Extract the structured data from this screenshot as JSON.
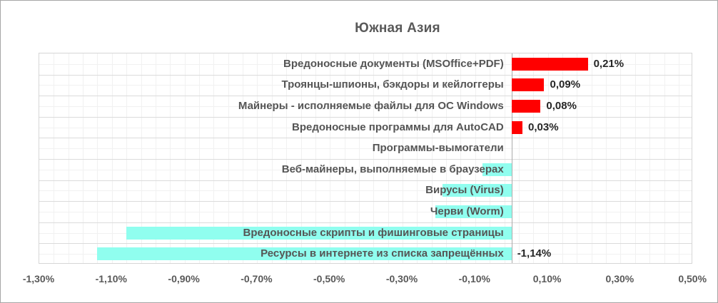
{
  "window": {
    "background": "#FFFFFF",
    "border_color": "#A6A6A6"
  },
  "chart_data": {
    "type": "bar",
    "orientation": "horizontal",
    "title": "Южная Азия",
    "categories": [
      "Вредоносные документы (MSOffice+PDF)",
      "Троянцы-шпионы, бэкдоры и кейлоггеры",
      "Майнеры - исполняемые файлы для ОС Windows",
      "Вредоносные программы для AutoCAD",
      "Программы-вымогатели",
      "Веб-майнеры, выполняемые в браузерах",
      "Вирусы (Virus)",
      "Черви (Worm)",
      "Вредоносные скрипты и фишинговые страницы",
      "Ресурсы в интернете из списка запрещённых"
    ],
    "values": [
      0.21,
      0.09,
      0.08,
      0.03,
      0.0,
      -0.08,
      -0.19,
      -0.21,
      -1.06,
      -1.14
    ],
    "data_labels": [
      "0,21%",
      "0,09%",
      "0,08%",
      "0,03%",
      null,
      null,
      null,
      null,
      null,
      "-1,14%"
    ],
    "x_ticks": [
      {
        "label": "-1,30%",
        "value": -1.3
      },
      {
        "label": "-1,10%",
        "value": -1.1
      },
      {
        "label": "-0,90%",
        "value": -0.9
      },
      {
        "label": "-0,70%",
        "value": -0.7
      },
      {
        "label": "-0,50%",
        "value": -0.5
      },
      {
        "label": "-0,30%",
        "value": -0.3
      },
      {
        "label": "-0,10%",
        "value": -0.1
      },
      {
        "label": "0,10%",
        "value": 0.1
      },
      {
        "label": "0,30%",
        "value": 0.3
      },
      {
        "label": "0,50%",
        "value": 0.5
      }
    ],
    "xlim": [
      -1.3,
      0.5
    ],
    "major_unit": 0.2,
    "minor_unit": 0.04,
    "grid": true,
    "legend": "none",
    "colors": {
      "positive_bar": "#FF0000",
      "negative_bar": "#90FEEF",
      "title_text": "#595959",
      "category_text": "#555555",
      "data_label_text": "#262626",
      "axis_text": "#595959",
      "gridline_minor": "#F1F1F1",
      "gridline_major": "#DBDBDB",
      "axis_line": "#ABABAB",
      "plot_border": "#D6D6D6"
    }
  }
}
